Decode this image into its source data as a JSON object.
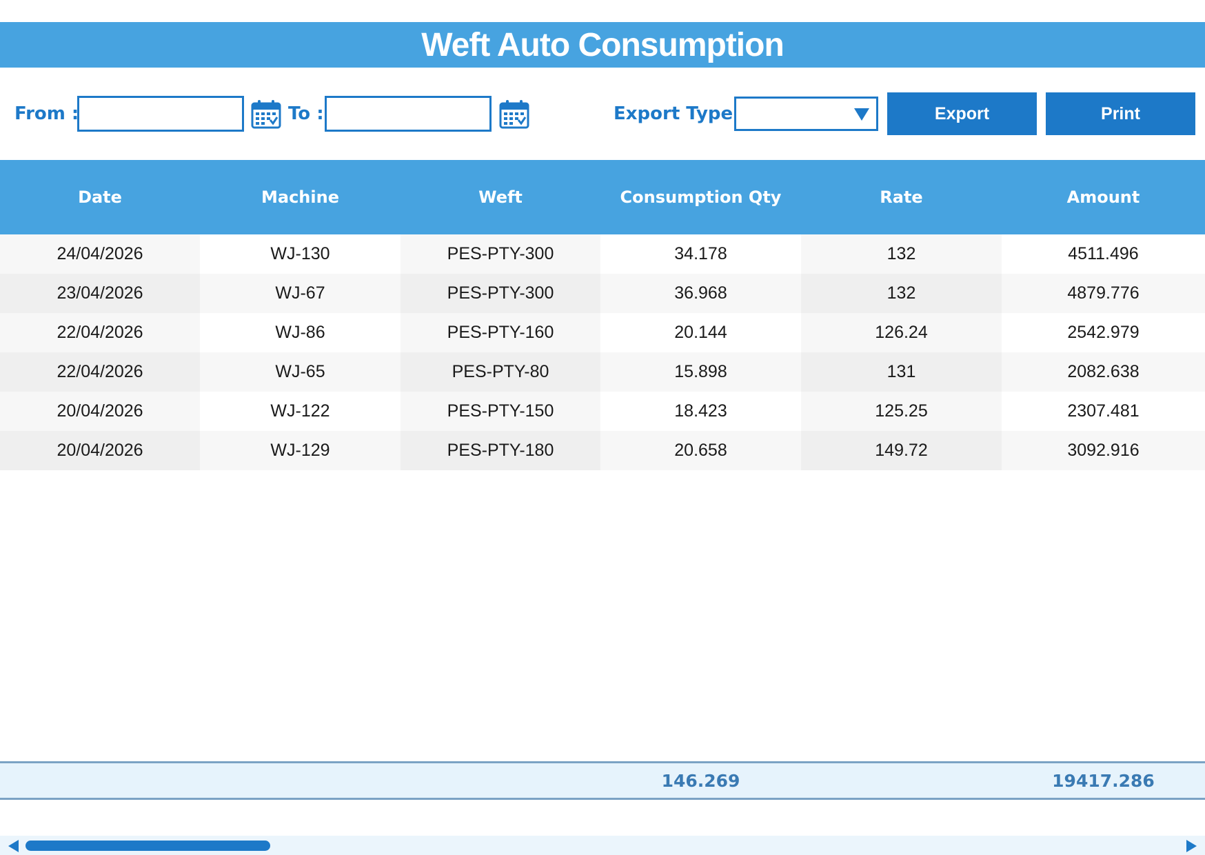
{
  "title": "Weft Auto Consumption",
  "filters": {
    "from_label": "From :",
    "from_value": "",
    "to_label": "To :",
    "to_value": "",
    "export_type_label": "Export Type :",
    "export_type_value": "",
    "export_button": "Export",
    "print_button": "Print"
  },
  "table": {
    "columns": [
      "Date",
      "Machine",
      "Weft",
      "Consumption Qty",
      "Rate",
      "Amount"
    ],
    "rows": [
      [
        "24/04/2026",
        "WJ-130",
        "PES-PTY-300",
        "34.178",
        "132",
        "4511.496"
      ],
      [
        "23/04/2026",
        "WJ-67",
        "PES-PTY-300",
        "36.968",
        "132",
        "4879.776"
      ],
      [
        "22/04/2026",
        "WJ-86",
        "PES-PTY-160",
        "20.144",
        "126.24",
        "2542.979"
      ],
      [
        "22/04/2026",
        "WJ-65",
        "PES-PTY-80",
        "15.898",
        "131",
        "2082.638"
      ],
      [
        "20/04/2026",
        "WJ-122",
        "PES-PTY-150",
        "18.423",
        "125.25",
        "2307.481"
      ],
      [
        "20/04/2026",
        "WJ-129",
        "PES-PTY-180",
        "20.658",
        "149.72",
        "3092.916"
      ]
    ]
  },
  "totals": {
    "consumption_qty": "146.269",
    "amount": "19417.286"
  },
  "icons": {
    "from_calendar": "calendar-icon",
    "to_calendar": "calendar-icon",
    "dropdown": "chevron-down-icon"
  },
  "colors": {
    "header_blue": "#47a3e0",
    "accent_blue": "#1d79c8",
    "totals_text": "#3a7ab3",
    "totals_bg": "#e6f3fc"
  }
}
